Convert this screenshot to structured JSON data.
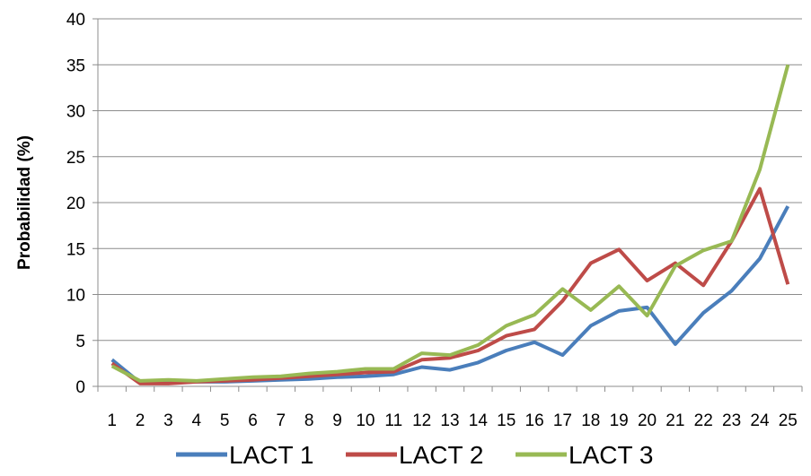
{
  "chart_data": {
    "type": "line",
    "title": "",
    "xlabel": "",
    "ylabel": "Probabilidad (%)",
    "ylim": [
      0,
      40
    ],
    "yticks": [
      0,
      5,
      10,
      15,
      20,
      25,
      30,
      35,
      40
    ],
    "grid": true,
    "legend_position": "bottom",
    "categories": [
      "1",
      "2",
      "3",
      "4",
      "5",
      "6",
      "7",
      "8",
      "9",
      "10",
      "11",
      "12",
      "13",
      "14",
      "15",
      "16",
      "17",
      "18",
      "19",
      "20",
      "21",
      "22",
      "23",
      "24",
      "25"
    ],
    "series": [
      {
        "name": "LACT 1",
        "color": "#4a7ebb",
        "values": [
          2.9,
          0.4,
          0.4,
          0.5,
          0.5,
          0.6,
          0.7,
          0.8,
          1.0,
          1.1,
          1.3,
          2.1,
          1.8,
          2.6,
          3.9,
          4.8,
          3.4,
          6.6,
          8.2,
          8.6,
          4.6,
          8.0,
          10.4,
          13.9,
          19.6
        ]
      },
      {
        "name": "LACT 2",
        "color": "#be4b48",
        "values": [
          2.5,
          0.3,
          0.3,
          0.5,
          0.6,
          0.7,
          0.9,
          1.1,
          1.3,
          1.5,
          1.6,
          2.9,
          3.1,
          3.9,
          5.5,
          6.2,
          9.3,
          13.4,
          14.9,
          11.5,
          13.4,
          11.0,
          15.8,
          21.5,
          11.1
        ]
      },
      {
        "name": "LACT 3",
        "color": "#98b954",
        "values": [
          2.2,
          0.6,
          0.7,
          0.6,
          0.8,
          1.0,
          1.1,
          1.4,
          1.6,
          1.9,
          1.9,
          3.6,
          3.4,
          4.5,
          6.6,
          7.8,
          10.6,
          8.3,
          10.9,
          7.7,
          13.1,
          14.8,
          15.8,
          23.6,
          35.0
        ]
      }
    ]
  }
}
